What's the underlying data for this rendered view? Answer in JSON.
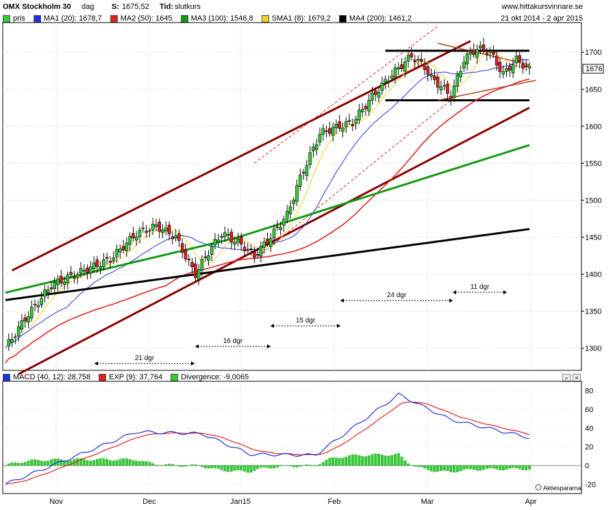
{
  "header": {
    "index_name": "OMX Stockholm 30",
    "period": "dag",
    "s_label": "S:",
    "s_value": "1675,52",
    "tid_label": "Tid:",
    "tid_value": "slutkurs",
    "site": "www.hittakursvinnare.se",
    "date_range": "21 okt 2014 - 2 apr 2015"
  },
  "legend_top": [
    {
      "label": "pris",
      "color": "#33cc33"
    },
    {
      "label": "MA1 (20): 1678,7",
      "color": "#2030e0"
    },
    {
      "label": "MA2 (50): 1645",
      "color": "#e02020"
    },
    {
      "label": "MA3 (100): 1546,8",
      "color": "#119911"
    },
    {
      "label": "SMA1 (8): 1679,2",
      "color": "#f0d020"
    },
    {
      "label": "MA4 (200): 1461,2",
      "color": "#000000"
    }
  ],
  "legend_bottom": [
    {
      "label": "MACD (40, 12): 28,758",
      "color": "#2030e0"
    },
    {
      "label": "EXP (9): 37,764",
      "color": "#e02020"
    },
    {
      "label": "Divergence: -9,0065",
      "color": "#33cc33"
    }
  ],
  "last_price_tag": "1676",
  "watermark": "Aktiespararna",
  "icons": {
    "magnifier": "magnifier-icon",
    "close": "close-icon"
  },
  "chart_data": [
    {
      "type": "candlestick",
      "title": "OMX Stockholm 30",
      "ylim": [
        1270,
        1740
      ],
      "y_ticks": [
        "1300",
        "1350",
        "1400",
        "1450",
        "1500",
        "1550",
        "1600",
        "1650",
        "1700"
      ],
      "x_ticks": [
        "Nov",
        "Dec",
        "Jan15",
        "Feb",
        "Mar",
        "Apr"
      ],
      "grid": true,
      "annotations": [
        {
          "text": "21 dgr"
        },
        {
          "text": "16 dgr"
        },
        {
          "text": "15 dgr"
        },
        {
          "text": "24 dgr"
        },
        {
          "text": "11 dgr"
        }
      ]
    },
    {
      "type": "line",
      "title": "MACD (40, 12)",
      "ylim": [
        -30,
        90
      ],
      "y_ticks": [
        "80",
        "60",
        "40",
        "20",
        "0",
        "-20"
      ],
      "series": [
        {
          "name": "MACD (40, 12)",
          "last": 28.758
        },
        {
          "name": "EXP (9)",
          "last": 37.764
        },
        {
          "name": "Divergence",
          "last": -9.0065
        }
      ]
    }
  ]
}
